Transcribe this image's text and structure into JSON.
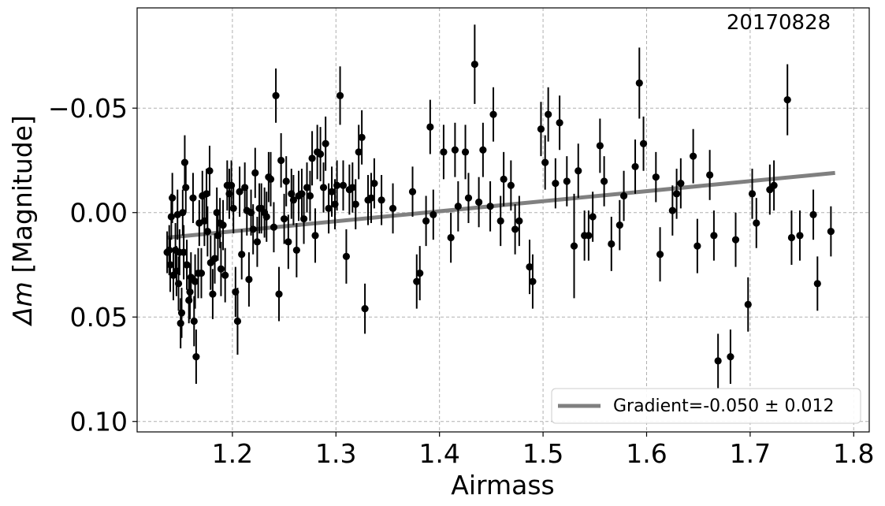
{
  "chart_data": {
    "type": "scatter",
    "xlabel": "Airmass",
    "ylabel_symbol": "Δm",
    "ylabel_rest": " [Magnitude]",
    "annotation": "20170828",
    "x_range": [
      1.108,
      1.815
    ],
    "y_range": [
      0.105,
      -0.098
    ],
    "y_inverted": true,
    "grid": true,
    "legend_position": "lower-right",
    "x_ticks": [
      {
        "value": 1.2,
        "label": "1.2"
      },
      {
        "value": 1.3,
        "label": "1.3"
      },
      {
        "value": 1.4,
        "label": "1.4"
      },
      {
        "value": 1.5,
        "label": "1.5"
      },
      {
        "value": 1.6,
        "label": "1.6"
      },
      {
        "value": 1.7,
        "label": "1.7"
      },
      {
        "value": 1.8,
        "label": "1.8"
      }
    ],
    "y_ticks": [
      {
        "value": -0.05,
        "label": "−0.05"
      },
      {
        "value": 0.0,
        "label": "0.00"
      },
      {
        "value": 0.05,
        "label": "0.05"
      },
      {
        "value": 0.1,
        "label": "0.10"
      }
    ],
    "fit_line": {
      "label": "Gradient=-0.050 ± 0.012",
      "x": [
        1.137,
        1.782
      ],
      "y": [
        0.012,
        -0.019
      ],
      "color": "#808080"
    },
    "point_color": "#000000",
    "points": [
      {
        "x": 1.137,
        "y": 0.019,
        "err": 0.01
      },
      {
        "x": 1.139,
        "y": 0.018,
        "err": 0.012
      },
      {
        "x": 1.14,
        "y": 0.025,
        "err": 0.013
      },
      {
        "x": 1.141,
        "y": 0.002,
        "err": 0.011
      },
      {
        "x": 1.142,
        "y": -0.007,
        "err": 0.012
      },
      {
        "x": 1.143,
        "y": 0.03,
        "err": 0.012
      },
      {
        "x": 1.145,
        "y": 0.018,
        "err": 0.013
      },
      {
        "x": 1.146,
        "y": 0.028,
        "err": 0.012
      },
      {
        "x": 1.147,
        "y": 0.001,
        "err": 0.012
      },
      {
        "x": 1.148,
        "y": 0.034,
        "err": 0.013
      },
      {
        "x": 1.149,
        "y": 0.019,
        "err": 0.011
      },
      {
        "x": 1.15,
        "y": 0.053,
        "err": 0.012
      },
      {
        "x": 1.151,
        "y": 0.048,
        "err": 0.012
      },
      {
        "x": 1.152,
        "y": 0.0,
        "err": 0.011
      },
      {
        "x": 1.153,
        "y": 0.019,
        "err": 0.013
      },
      {
        "x": 1.154,
        "y": -0.024,
        "err": 0.013
      },
      {
        "x": 1.155,
        "y": -0.012,
        "err": 0.012
      },
      {
        "x": 1.156,
        "y": 0.025,
        "err": 0.012
      },
      {
        "x": 1.158,
        "y": 0.042,
        "err": 0.011
      },
      {
        "x": 1.159,
        "y": 0.038,
        "err": 0.013
      },
      {
        "x": 1.16,
        "y": 0.031,
        "err": 0.012
      },
      {
        "x": 1.162,
        "y": -0.007,
        "err": 0.012
      },
      {
        "x": 1.163,
        "y": 0.052,
        "err": 0.012
      },
      {
        "x": 1.164,
        "y": 0.033,
        "err": 0.013
      },
      {
        "x": 1.165,
        "y": 0.069,
        "err": 0.013
      },
      {
        "x": 1.167,
        "y": 0.029,
        "err": 0.012
      },
      {
        "x": 1.168,
        "y": 0.005,
        "err": 0.011
      },
      {
        "x": 1.17,
        "y": 0.029,
        "err": 0.012
      },
      {
        "x": 1.171,
        "y": -0.008,
        "err": 0.012
      },
      {
        "x": 1.173,
        "y": 0.004,
        "err": 0.012
      },
      {
        "x": 1.175,
        "y": -0.009,
        "err": 0.012
      },
      {
        "x": 1.176,
        "y": 0.009,
        "err": 0.012
      },
      {
        "x": 1.178,
        "y": -0.02,
        "err": 0.012
      },
      {
        "x": 1.179,
        "y": 0.024,
        "err": 0.013
      },
      {
        "x": 1.181,
        "y": 0.039,
        "err": 0.012
      },
      {
        "x": 1.183,
        "y": 0.022,
        "err": 0.012
      },
      {
        "x": 1.185,
        "y": 0.0,
        "err": 0.012
      },
      {
        "x": 1.186,
        "y": 0.011,
        "err": 0.012
      },
      {
        "x": 1.188,
        "y": 0.005,
        "err": 0.012
      },
      {
        "x": 1.189,
        "y": 0.027,
        "err": 0.013
      },
      {
        "x": 1.191,
        "y": 0.006,
        "err": 0.012
      },
      {
        "x": 1.193,
        "y": 0.03,
        "err": 0.013
      },
      {
        "x": 1.195,
        "y": -0.013,
        "err": 0.012
      },
      {
        "x": 1.197,
        "y": -0.009,
        "err": 0.012
      },
      {
        "x": 1.199,
        "y": -0.013,
        "err": 0.012
      },
      {
        "x": 1.201,
        "y": -0.002,
        "err": 0.012
      },
      {
        "x": 1.203,
        "y": 0.038,
        "err": 0.012
      },
      {
        "x": 1.205,
        "y": 0.052,
        "err": 0.016
      },
      {
        "x": 1.207,
        "y": -0.01,
        "err": 0.012
      },
      {
        "x": 1.209,
        "y": 0.02,
        "err": 0.012
      },
      {
        "x": 1.212,
        "y": -0.012,
        "err": 0.012
      },
      {
        "x": 1.214,
        "y": -0.001,
        "err": 0.012
      },
      {
        "x": 1.216,
        "y": 0.032,
        "err": 0.013
      },
      {
        "x": 1.218,
        "y": 0.0,
        "err": 0.011
      },
      {
        "x": 1.22,
        "y": 0.008,
        "err": 0.012
      },
      {
        "x": 1.222,
        "y": -0.019,
        "err": 0.012
      },
      {
        "x": 1.224,
        "y": 0.014,
        "err": 0.012
      },
      {
        "x": 1.226,
        "y": -0.002,
        "err": 0.012
      },
      {
        "x": 1.228,
        "y": -0.002,
        "err": 0.012
      },
      {
        "x": 1.231,
        "y": 0.0,
        "err": 0.012
      },
      {
        "x": 1.233,
        "y": 0.002,
        "err": 0.012
      },
      {
        "x": 1.235,
        "y": -0.017,
        "err": 0.012
      },
      {
        "x": 1.237,
        "y": -0.016,
        "err": 0.013
      },
      {
        "x": 1.24,
        "y": 0.007,
        "err": 0.012
      },
      {
        "x": 1.242,
        "y": -0.056,
        "err": 0.013
      },
      {
        "x": 1.245,
        "y": 0.039,
        "err": 0.013
      },
      {
        "x": 1.247,
        "y": -0.025,
        "err": 0.013
      },
      {
        "x": 1.25,
        "y": 0.003,
        "err": 0.012
      },
      {
        "x": 1.252,
        "y": -0.015,
        "err": 0.012
      },
      {
        "x": 1.254,
        "y": 0.014,
        "err": 0.013
      },
      {
        "x": 1.257,
        "y": -0.009,
        "err": 0.012
      },
      {
        "x": 1.259,
        "y": -0.006,
        "err": 0.012
      },
      {
        "x": 1.262,
        "y": 0.018,
        "err": 0.013
      },
      {
        "x": 1.264,
        "y": -0.008,
        "err": 0.012
      },
      {
        "x": 1.267,
        "y": -0.009,
        "err": 0.012
      },
      {
        "x": 1.269,
        "y": 0.003,
        "err": 0.012
      },
      {
        "x": 1.272,
        "y": -0.012,
        "err": 0.012
      },
      {
        "x": 1.275,
        "y": -0.008,
        "err": 0.012
      },
      {
        "x": 1.277,
        "y": -0.026,
        "err": 0.013
      },
      {
        "x": 1.28,
        "y": 0.011,
        "err": 0.013
      },
      {
        "x": 1.282,
        "y": -0.029,
        "err": 0.013
      },
      {
        "x": 1.285,
        "y": -0.028,
        "err": 0.013
      },
      {
        "x": 1.288,
        "y": -0.012,
        "err": 0.012
      },
      {
        "x": 1.29,
        "y": -0.033,
        "err": 0.013
      },
      {
        "x": 1.293,
        "y": -0.002,
        "err": 0.012
      },
      {
        "x": 1.296,
        "y": -0.01,
        "err": 0.012
      },
      {
        "x": 1.299,
        "y": -0.004,
        "err": 0.012
      },
      {
        "x": 1.301,
        "y": -0.013,
        "err": 0.012
      },
      {
        "x": 1.304,
        "y": -0.056,
        "err": 0.014
      },
      {
        "x": 1.307,
        "y": -0.013,
        "err": 0.012
      },
      {
        "x": 1.31,
        "y": 0.021,
        "err": 0.013
      },
      {
        "x": 1.313,
        "y": -0.011,
        "err": 0.012
      },
      {
        "x": 1.316,
        "y": -0.012,
        "err": 0.012
      },
      {
        "x": 1.319,
        "y": -0.004,
        "err": 0.012
      },
      {
        "x": 1.322,
        "y": -0.029,
        "err": 0.013
      },
      {
        "x": 1.325,
        "y": -0.036,
        "err": 0.013
      },
      {
        "x": 1.328,
        "y": 0.046,
        "err": 0.012
      },
      {
        "x": 1.331,
        "y": -0.006,
        "err": 0.012
      },
      {
        "x": 1.334,
        "y": -0.007,
        "err": 0.012
      },
      {
        "x": 1.337,
        "y": -0.014,
        "err": 0.012
      },
      {
        "x": 1.344,
        "y": -0.006,
        "err": 0.012
      },
      {
        "x": 1.355,
        "y": -0.002,
        "err": 0.012
      },
      {
        "x": 1.374,
        "y": -0.01,
        "err": 0.012
      },
      {
        "x": 1.378,
        "y": 0.033,
        "err": 0.013
      },
      {
        "x": 1.381,
        "y": 0.029,
        "err": 0.013
      },
      {
        "x": 1.387,
        "y": 0.004,
        "err": 0.012
      },
      {
        "x": 1.391,
        "y": -0.041,
        "err": 0.013
      },
      {
        "x": 1.394,
        "y": 0.001,
        "err": 0.012
      },
      {
        "x": 1.404,
        "y": -0.029,
        "err": 0.013
      },
      {
        "x": 1.411,
        "y": 0.012,
        "err": 0.012
      },
      {
        "x": 1.415,
        "y": -0.03,
        "err": 0.013
      },
      {
        "x": 1.418,
        "y": -0.003,
        "err": 0.012
      },
      {
        "x": 1.425,
        "y": -0.029,
        "err": 0.013
      },
      {
        "x": 1.428,
        "y": -0.007,
        "err": 0.012
      },
      {
        "x": 1.434,
        "y": -0.071,
        "err": 0.019
      },
      {
        "x": 1.438,
        "y": -0.005,
        "err": 0.012
      },
      {
        "x": 1.442,
        "y": -0.03,
        "err": 0.013
      },
      {
        "x": 1.449,
        "y": -0.003,
        "err": 0.012
      },
      {
        "x": 1.452,
        "y": -0.047,
        "err": 0.013
      },
      {
        "x": 1.459,
        "y": 0.004,
        "err": 0.012
      },
      {
        "x": 1.462,
        "y": -0.016,
        "err": 0.013
      },
      {
        "x": 1.469,
        "y": -0.013,
        "err": 0.012
      },
      {
        "x": 1.473,
        "y": 0.008,
        "err": 0.012
      },
      {
        "x": 1.477,
        "y": 0.004,
        "err": 0.012
      },
      {
        "x": 1.487,
        "y": 0.026,
        "err": 0.013
      },
      {
        "x": 1.49,
        "y": 0.033,
        "err": 0.013
      },
      {
        "x": 1.498,
        "y": -0.04,
        "err": 0.013
      },
      {
        "x": 1.502,
        "y": -0.024,
        "err": 0.013
      },
      {
        "x": 1.505,
        "y": -0.047,
        "err": 0.013
      },
      {
        "x": 1.512,
        "y": -0.014,
        "err": 0.012
      },
      {
        "x": 1.516,
        "y": -0.043,
        "err": 0.013
      },
      {
        "x": 1.523,
        "y": -0.015,
        "err": 0.012
      },
      {
        "x": 1.53,
        "y": 0.016,
        "err": 0.025
      },
      {
        "x": 1.534,
        "y": -0.02,
        "err": 0.013
      },
      {
        "x": 1.54,
        "y": 0.011,
        "err": 0.012
      },
      {
        "x": 1.544,
        "y": 0.011,
        "err": 0.012
      },
      {
        "x": 1.548,
        "y": 0.002,
        "err": 0.012
      },
      {
        "x": 1.555,
        "y": -0.032,
        "err": 0.013
      },
      {
        "x": 1.559,
        "y": -0.015,
        "err": 0.012
      },
      {
        "x": 1.566,
        "y": 0.015,
        "err": 0.013
      },
      {
        "x": 1.574,
        "y": 0.006,
        "err": 0.012
      },
      {
        "x": 1.578,
        "y": -0.008,
        "err": 0.012
      },
      {
        "x": 1.589,
        "y": -0.022,
        "err": 0.013
      },
      {
        "x": 1.593,
        "y": -0.062,
        "err": 0.017
      },
      {
        "x": 1.597,
        "y": -0.033,
        "err": 0.013
      },
      {
        "x": 1.609,
        "y": -0.017,
        "err": 0.012
      },
      {
        "x": 1.613,
        "y": 0.02,
        "err": 0.013
      },
      {
        "x": 1.625,
        "y": -0.001,
        "err": 0.012
      },
      {
        "x": 1.629,
        "y": -0.009,
        "err": 0.012
      },
      {
        "x": 1.633,
        "y": -0.014,
        "err": 0.012
      },
      {
        "x": 1.645,
        "y": -0.027,
        "err": 0.013
      },
      {
        "x": 1.649,
        "y": 0.016,
        "err": 0.013
      },
      {
        "x": 1.661,
        "y": -0.018,
        "err": 0.012
      },
      {
        "x": 1.665,
        "y": 0.011,
        "err": 0.012
      },
      {
        "x": 1.669,
        "y": 0.071,
        "err": 0.013
      },
      {
        "x": 1.681,
        "y": 0.069,
        "err": 0.013
      },
      {
        "x": 1.686,
        "y": 0.013,
        "err": 0.013
      },
      {
        "x": 1.698,
        "y": 0.044,
        "err": 0.013
      },
      {
        "x": 1.702,
        "y": -0.009,
        "err": 0.012
      },
      {
        "x": 1.706,
        "y": 0.005,
        "err": 0.012
      },
      {
        "x": 1.719,
        "y": -0.011,
        "err": 0.012
      },
      {
        "x": 1.723,
        "y": -0.013,
        "err": 0.012
      },
      {
        "x": 1.736,
        "y": -0.054,
        "err": 0.017
      },
      {
        "x": 1.74,
        "y": 0.012,
        "err": 0.013
      },
      {
        "x": 1.748,
        "y": 0.011,
        "err": 0.012
      },
      {
        "x": 1.761,
        "y": 0.001,
        "err": 0.012
      },
      {
        "x": 1.765,
        "y": 0.034,
        "err": 0.013
      },
      {
        "x": 1.778,
        "y": 0.009,
        "err": 0.012
      }
    ]
  }
}
